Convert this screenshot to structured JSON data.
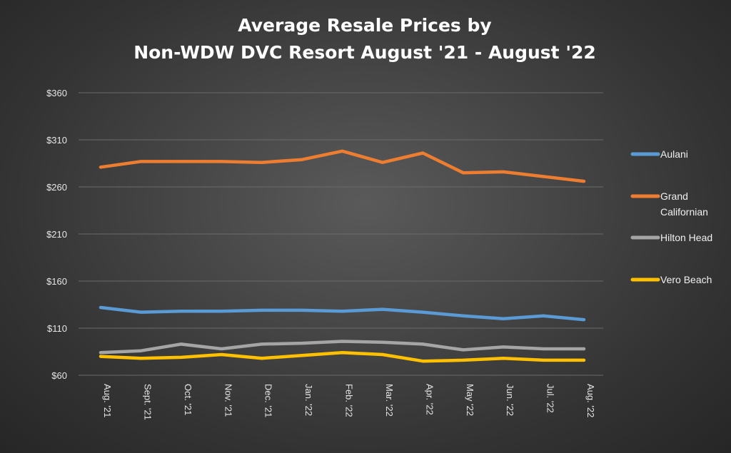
{
  "chart_data": {
    "type": "line",
    "title": [
      "Average Resale Prices by",
      "Non-WDW DVC Resort August '21 - August  '22"
    ],
    "xlabel": "",
    "ylabel": "",
    "categories": [
      "Aug. '21",
      "Sept. '21",
      "Oct. '21",
      "Nov. '21",
      "Dec. '21",
      "Jan. '22",
      "Feb. '22",
      "Mar. '22",
      "Apr. '22",
      "May '22",
      "Jun. '22",
      "Jul. '22",
      "Aug. '22"
    ],
    "ylim": [
      60,
      360
    ],
    "yticks": [
      60,
      110,
      160,
      210,
      260,
      310,
      360
    ],
    "ytick_labels": [
      "$60",
      "$110",
      "$160",
      "$210",
      "$260",
      "$310",
      "$360"
    ],
    "grid": true,
    "legend_position": "right",
    "series": [
      {
        "name": "Aulani",
        "color": "#5b9bd5",
        "values": [
          132,
          127,
          128,
          128,
          129,
          129,
          128,
          130,
          127,
          123,
          120,
          123,
          119
        ]
      },
      {
        "name": "Grand Californian",
        "color": "#ed7d31",
        "values": [
          281,
          287,
          287,
          287,
          286,
          289,
          298,
          286,
          296,
          275,
          276,
          271,
          266
        ]
      },
      {
        "name": "Hilton Head",
        "color": "#a5a5a5",
        "values": [
          84,
          86,
          93,
          88,
          93,
          94,
          96,
          95,
          93,
          87,
          90,
          88,
          88
        ]
      },
      {
        "name": "Vero Beach",
        "color": "#ffc000",
        "values": [
          80,
          78,
          79,
          82,
          78,
          81,
          84,
          82,
          75,
          76,
          78,
          76,
          76
        ]
      }
    ]
  }
}
